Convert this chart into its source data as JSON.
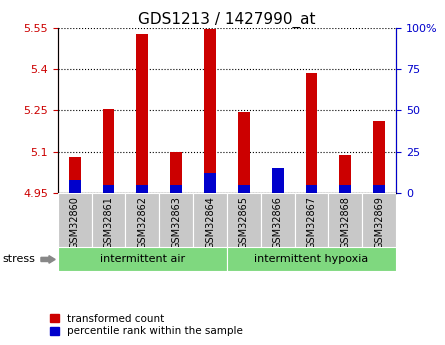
{
  "title": "GDS1213 / 1427990_at",
  "samples": [
    "GSM32860",
    "GSM32861",
    "GSM32862",
    "GSM32863",
    "GSM32864",
    "GSM32865",
    "GSM32866",
    "GSM32867",
    "GSM32868",
    "GSM32869"
  ],
  "red_values": [
    5.08,
    5.255,
    5.525,
    5.1,
    5.545,
    5.245,
    4.965,
    5.385,
    5.09,
    5.21
  ],
  "blue_pct": [
    8,
    5,
    5,
    5,
    12,
    5,
    15,
    5,
    5,
    5
  ],
  "base": 4.95,
  "ylim_left": [
    4.95,
    5.55
  ],
  "ylim_right": [
    0,
    100
  ],
  "yticks_left": [
    4.95,
    5.1,
    5.25,
    5.4,
    5.55
  ],
  "yticks_right": [
    0,
    25,
    50,
    75,
    100
  ],
  "ytick_labels_left": [
    "4.95",
    "5.1",
    "5.25",
    "5.4",
    "5.55"
  ],
  "ytick_labels_right": [
    "0",
    "25",
    "50",
    "75",
    "100%"
  ],
  "group1_label": "intermittent air",
  "group2_label": "intermittent hypoxia",
  "group1_indices": [
    0,
    1,
    2,
    3,
    4
  ],
  "group2_indices": [
    5,
    6,
    7,
    8,
    9
  ],
  "stress_label": "stress",
  "legend_red": "transformed count",
  "legend_blue": "percentile rank within the sample",
  "bar_width": 0.35,
  "red_color": "#cc0000",
  "blue_color": "#0000cc",
  "group_bg_color": "#7FD87F",
  "sample_bg_color": "#c8c8c8",
  "grid_color": "#000000",
  "title_fontsize": 11,
  "tick_fontsize": 8,
  "label_fontsize": 8
}
